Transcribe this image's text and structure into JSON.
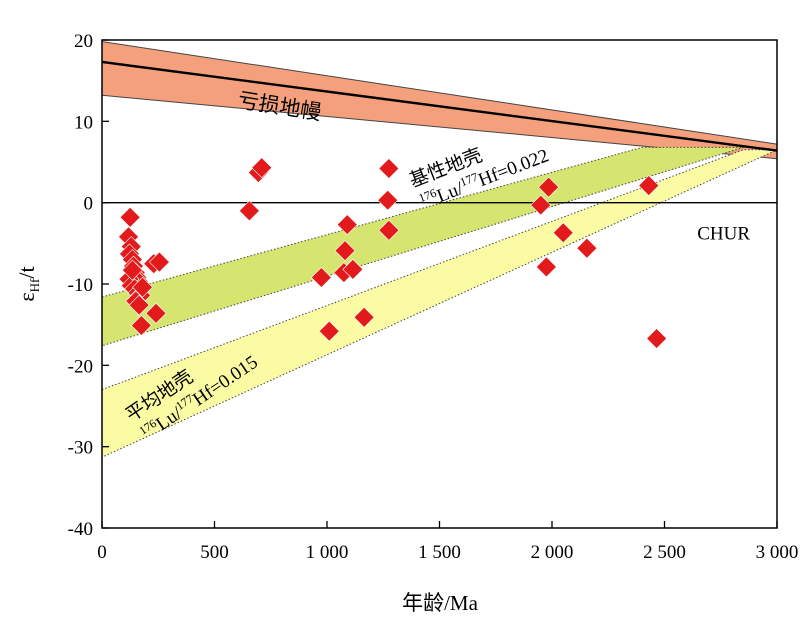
{
  "chart_data": {
    "type": "scatter",
    "xlabel": "年龄/Ma",
    "ylabel": {
      "main": "ε",
      "sub": "Hf",
      "tail": "/t"
    },
    "xlim": [
      0,
      3000
    ],
    "ylim": [
      -40,
      20
    ],
    "x_ticks": [
      0,
      500,
      1000,
      1500,
      2000,
      2500,
      3000
    ],
    "x_tick_labels": [
      "0",
      "500",
      "1 000",
      "1 500",
      "2 000",
      "2 500",
      "3 000"
    ],
    "y_ticks": [
      -40,
      -30,
      -20,
      -10,
      0,
      10,
      20
    ],
    "y_tick_labels": [
      "-40",
      "-30",
      "-20",
      "-10",
      "0",
      "10",
      "20"
    ],
    "grid": false,
    "legend": "none",
    "reference_lines": {
      "chur": {
        "label": "CHUR",
        "y": 0,
        "label_x": 2880,
        "label_y": -4.5
      },
      "depleted_mantle": {
        "points": [
          [
            0,
            17.3
          ],
          [
            3000,
            6.4
          ]
        ]
      }
    },
    "bands": [
      {
        "key": "depleted_mantle_band",
        "label": "亏损地幔",
        "color": "#f4a07c",
        "polygon": [
          [
            0,
            19.8
          ],
          [
            3000,
            7.2
          ],
          [
            3000,
            5.4
          ],
          [
            0,
            13.2
          ]
        ],
        "label_anchor": [
          600,
          11.8
        ],
        "label_angle": 9
      },
      {
        "key": "mafic_crust_band",
        "label_name": "基性地壳",
        "label_sup": "176",
        "label_mid": "Lu/",
        "label_sup2": "177",
        "label_tail": "Hf=0.022",
        "color": "#d6e56f",
        "polygon": [
          [
            0,
            -11.6
          ],
          [
            2400,
            6.8
          ],
          [
            2850,
            6.8
          ],
          [
            0,
            -17.6
          ]
        ],
        "label_anchor": [
          1380,
          1.9
        ],
        "label_angle": -21
      },
      {
        "key": "average_crust_band",
        "label_name": "平均地壳",
        "label_sup": "176",
        "label_mid": "Lu/",
        "label_sup2": "177",
        "label_tail": "Hf=0.015",
        "color": "#fbfba4",
        "polygon": [
          [
            0,
            -23.0
          ],
          [
            2850,
            6.5
          ],
          [
            3000,
            6.5
          ],
          [
            0,
            -31.3
          ]
        ],
        "label_anchor": [
          130,
          -27.0
        ],
        "label_angle": -34
      }
    ],
    "series": [
      {
        "color": "#e31a1c",
        "marker": "diamond",
        "points": [
          [
            125,
            -1.8
          ],
          [
            118,
            -4.2
          ],
          [
            130,
            -5.4
          ],
          [
            122,
            -6.3
          ],
          [
            135,
            -7.0
          ],
          [
            140,
            -7.8
          ],
          [
            148,
            -8.6
          ],
          [
            155,
            -9.2
          ],
          [
            162,
            -9.7
          ],
          [
            120,
            -9.4
          ],
          [
            130,
            -10.2
          ],
          [
            145,
            -10.6
          ],
          [
            160,
            -11.1
          ],
          [
            172,
            -11.4
          ],
          [
            150,
            -12.1
          ],
          [
            165,
            -12.6
          ],
          [
            180,
            -10.4
          ],
          [
            135,
            -8.3
          ],
          [
            175,
            -15.1
          ],
          [
            230,
            -7.5
          ],
          [
            255,
            -7.3
          ],
          [
            240,
            -13.6
          ],
          [
            655,
            -1.0
          ],
          [
            695,
            3.7
          ],
          [
            710,
            4.3
          ],
          [
            975,
            -9.2
          ],
          [
            1010,
            -15.8
          ],
          [
            1080,
            -5.9
          ],
          [
            1090,
            -2.7
          ],
          [
            1075,
            -8.6
          ],
          [
            1115,
            -8.2
          ],
          [
            1165,
            -14.1
          ],
          [
            1275,
            4.2
          ],
          [
            1270,
            0.3
          ],
          [
            1275,
            -3.4
          ],
          [
            1950,
            -0.3
          ],
          [
            1985,
            1.9
          ],
          [
            1975,
            -7.9
          ],
          [
            2050,
            -3.7
          ],
          [
            2155,
            -5.6
          ],
          [
            2430,
            2.1
          ],
          [
            2465,
            -16.7
          ]
        ]
      }
    ]
  }
}
